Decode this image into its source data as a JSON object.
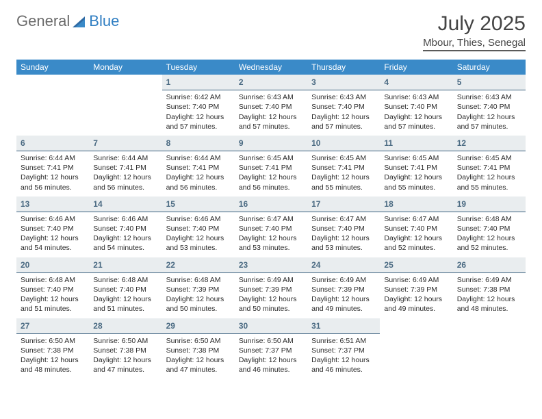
{
  "logo": {
    "general": "General",
    "blue": "Blue"
  },
  "title": "July 2025",
  "location": "Mbour, Thies, Senegal",
  "colors": {
    "header_bg": "#3a8ac8",
    "header_text": "#ffffff",
    "daynum_bg": "#e9edef",
    "daynum_border": "#385f7d",
    "daynum_text": "#4a6a82",
    "body_text": "#2a2a2a",
    "logo_gray": "#6b6b6b",
    "logo_blue": "#2f7ec2",
    "hr": "#5a5a5a"
  },
  "daynames": [
    "Sunday",
    "Monday",
    "Tuesday",
    "Wednesday",
    "Thursday",
    "Friday",
    "Saturday"
  ],
  "weeks": [
    [
      {
        "blank": true
      },
      {
        "blank": true
      },
      {
        "n": "1",
        "sr": "6:42 AM",
        "ss": "7:40 PM",
        "dl": "12 hours and 57 minutes."
      },
      {
        "n": "2",
        "sr": "6:43 AM",
        "ss": "7:40 PM",
        "dl": "12 hours and 57 minutes."
      },
      {
        "n": "3",
        "sr": "6:43 AM",
        "ss": "7:40 PM",
        "dl": "12 hours and 57 minutes."
      },
      {
        "n": "4",
        "sr": "6:43 AM",
        "ss": "7:40 PM",
        "dl": "12 hours and 57 minutes."
      },
      {
        "n": "5",
        "sr": "6:43 AM",
        "ss": "7:40 PM",
        "dl": "12 hours and 57 minutes."
      }
    ],
    [
      {
        "n": "6",
        "sr": "6:44 AM",
        "ss": "7:41 PM",
        "dl": "12 hours and 56 minutes."
      },
      {
        "n": "7",
        "sr": "6:44 AM",
        "ss": "7:41 PM",
        "dl": "12 hours and 56 minutes."
      },
      {
        "n": "8",
        "sr": "6:44 AM",
        "ss": "7:41 PM",
        "dl": "12 hours and 56 minutes."
      },
      {
        "n": "9",
        "sr": "6:45 AM",
        "ss": "7:41 PM",
        "dl": "12 hours and 56 minutes."
      },
      {
        "n": "10",
        "sr": "6:45 AM",
        "ss": "7:41 PM",
        "dl": "12 hours and 55 minutes."
      },
      {
        "n": "11",
        "sr": "6:45 AM",
        "ss": "7:41 PM",
        "dl": "12 hours and 55 minutes."
      },
      {
        "n": "12",
        "sr": "6:45 AM",
        "ss": "7:41 PM",
        "dl": "12 hours and 55 minutes."
      }
    ],
    [
      {
        "n": "13",
        "sr": "6:46 AM",
        "ss": "7:40 PM",
        "dl": "12 hours and 54 minutes."
      },
      {
        "n": "14",
        "sr": "6:46 AM",
        "ss": "7:40 PM",
        "dl": "12 hours and 54 minutes."
      },
      {
        "n": "15",
        "sr": "6:46 AM",
        "ss": "7:40 PM",
        "dl": "12 hours and 53 minutes."
      },
      {
        "n": "16",
        "sr": "6:47 AM",
        "ss": "7:40 PM",
        "dl": "12 hours and 53 minutes."
      },
      {
        "n": "17",
        "sr": "6:47 AM",
        "ss": "7:40 PM",
        "dl": "12 hours and 53 minutes."
      },
      {
        "n": "18",
        "sr": "6:47 AM",
        "ss": "7:40 PM",
        "dl": "12 hours and 52 minutes."
      },
      {
        "n": "19",
        "sr": "6:48 AM",
        "ss": "7:40 PM",
        "dl": "12 hours and 52 minutes."
      }
    ],
    [
      {
        "n": "20",
        "sr": "6:48 AM",
        "ss": "7:40 PM",
        "dl": "12 hours and 51 minutes."
      },
      {
        "n": "21",
        "sr": "6:48 AM",
        "ss": "7:40 PM",
        "dl": "12 hours and 51 minutes."
      },
      {
        "n": "22",
        "sr": "6:48 AM",
        "ss": "7:39 PM",
        "dl": "12 hours and 50 minutes."
      },
      {
        "n": "23",
        "sr": "6:49 AM",
        "ss": "7:39 PM",
        "dl": "12 hours and 50 minutes."
      },
      {
        "n": "24",
        "sr": "6:49 AM",
        "ss": "7:39 PM",
        "dl": "12 hours and 49 minutes."
      },
      {
        "n": "25",
        "sr": "6:49 AM",
        "ss": "7:39 PM",
        "dl": "12 hours and 49 minutes."
      },
      {
        "n": "26",
        "sr": "6:49 AM",
        "ss": "7:38 PM",
        "dl": "12 hours and 48 minutes."
      }
    ],
    [
      {
        "n": "27",
        "sr": "6:50 AM",
        "ss": "7:38 PM",
        "dl": "12 hours and 48 minutes."
      },
      {
        "n": "28",
        "sr": "6:50 AM",
        "ss": "7:38 PM",
        "dl": "12 hours and 47 minutes."
      },
      {
        "n": "29",
        "sr": "6:50 AM",
        "ss": "7:38 PM",
        "dl": "12 hours and 47 minutes."
      },
      {
        "n": "30",
        "sr": "6:50 AM",
        "ss": "7:37 PM",
        "dl": "12 hours and 46 minutes."
      },
      {
        "n": "31",
        "sr": "6:51 AM",
        "ss": "7:37 PM",
        "dl": "12 hours and 46 minutes."
      },
      {
        "blank": true
      },
      {
        "blank": true
      }
    ]
  ],
  "labels": {
    "sunrise": "Sunrise: ",
    "sunset": "Sunset: ",
    "daylight": "Daylight: "
  }
}
